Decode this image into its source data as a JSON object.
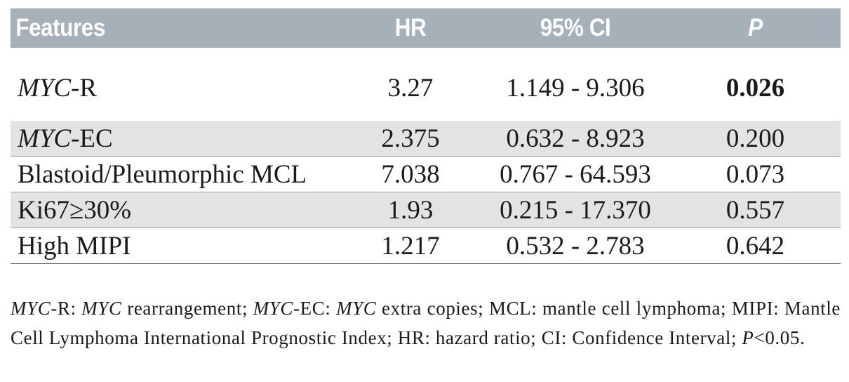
{
  "table": {
    "headers": {
      "features": "Features",
      "hr": "HR",
      "ci": "95% CI",
      "p": "P"
    },
    "rows": [
      {
        "feature_italic": "MYC",
        "feature_rest": "-R",
        "hr": "3.27",
        "ci": "1.149 - 9.306",
        "p": "0.026",
        "p_bold": true
      },
      {
        "feature_italic": "MYC",
        "feature_rest": "-EC",
        "hr": "2.375",
        "ci": "0.632 - 8.923",
        "p": "0.200"
      },
      {
        "feature_italic": "",
        "feature_rest": "Blastoid/Pleumorphic MCL",
        "hr": "7.038",
        "ci": "0.767 - 64.593",
        "p": "0.073"
      },
      {
        "feature_italic": "",
        "feature_rest": "Ki67≥30%",
        "hr": "1.93",
        "ci": "0.215 - 17.370",
        "p": "0.557"
      },
      {
        "feature_italic": "",
        "feature_rest": "High MIPI",
        "hr": "1.217",
        "ci": "0.532 - 2.783",
        "p": "0.642"
      }
    ]
  },
  "footnote": {
    "p1_it": "MYC",
    "p1": "-R: ",
    "p2_it": "MYC",
    "p2": " rearrangement; ",
    "p3_it": "MYC",
    "p3": "-EC: ",
    "p4_it": "MYC",
    "p4": " extra copies; MCL: mantle cell lymphoma; MIPI: Mantle Cell Lymphoma International Prognostic Index; HR: hazard ratio; CI: Confidence Interval; ",
    "p5_it": "P",
    "p5": "<0.05."
  }
}
